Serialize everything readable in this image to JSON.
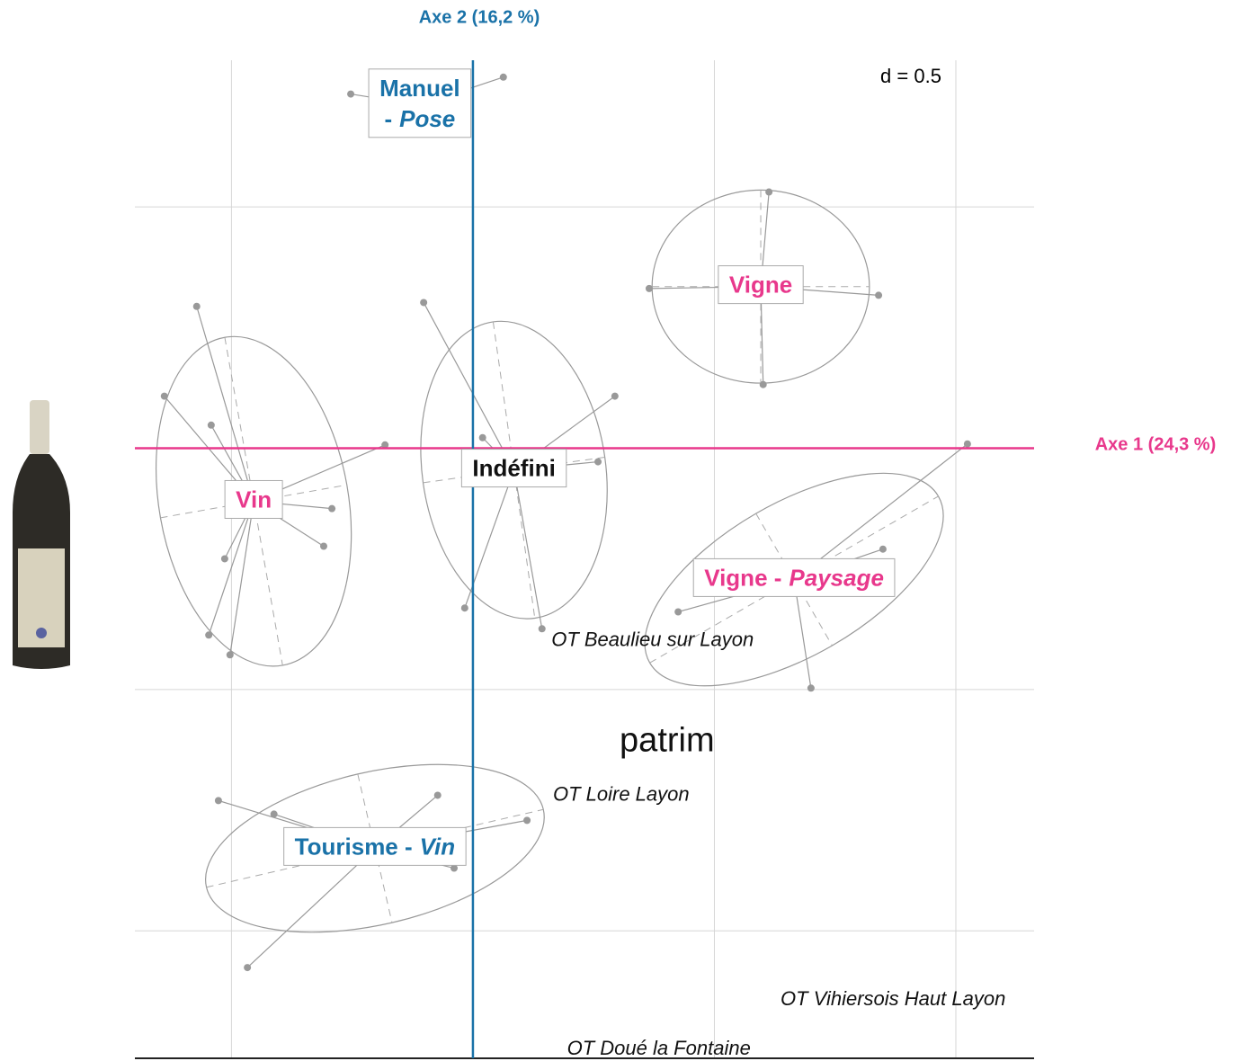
{
  "chart_data": {
    "type": "scatter",
    "x_axis_label": "Axe 1 (24,3 %)",
    "y_axis_label": "Axe 2 (16,2 %)",
    "x_axis_color": "#e8388c",
    "y_axis_color": "#1a72a8",
    "scale_label": "d = 0.5",
    "xlim": [
      -0.7,
      1.162
    ],
    "ylim": [
      -1.264,
      0.804
    ],
    "xticks": [
      -0.5,
      0,
      0.5,
      1
    ],
    "yticks": [
      -1,
      -0.5,
      0,
      0.5
    ],
    "grid": true,
    "classes": [
      {
        "parts": [
          {
            "text": "Manuel"
          },
          {
            "text": "-",
            "newline": true
          },
          {
            "text": "Pose",
            "italic": true
          }
        ],
        "color": "#1a72a8",
        "center": [
          -0.11,
          0.711
        ],
        "points": {
          "x": [
            -0.253,
            0.063
          ],
          "y": [
            0.734,
            0.769
          ]
        }
      },
      {
        "parts": [
          {
            "text": "Vigne"
          }
        ],
        "color": "#e8388c",
        "center": [
          0.596,
          0.335
        ],
        "points": {
          "x": [
            0.613,
            0.365,
            0.84,
            0.601
          ],
          "y": [
            0.531,
            0.331,
            0.317,
            0.132
          ]
        },
        "ellipse": {
          "rx": 0.225,
          "ry": 0.2,
          "angle": 0
        }
      },
      {
        "parts": [
          {
            "text": "Vin"
          }
        ],
        "color": "#e8388c",
        "center": [
          -0.454,
          -0.11
        ],
        "points": {
          "x": [
            -0.572,
            -0.639,
            -0.542,
            -0.182,
            -0.292,
            -0.309,
            -0.514,
            -0.547,
            -0.503
          ],
          "y": [
            0.294,
            0.108,
            0.048,
            0.007,
            -0.125,
            -0.203,
            -0.229,
            -0.387,
            -0.428
          ]
        },
        "ellipse": {
          "rx": 0.196,
          "ry": 0.345,
          "angle": -10
        }
      },
      {
        "parts": [
          {
            "text": "Indéfini"
          }
        ],
        "color": "#111111",
        "center": [
          0.085,
          -0.045
        ],
        "points": {
          "x": [
            -0.102,
            0.294,
            0.02,
            0.259,
            -0.017,
            0.143
          ],
          "y": [
            0.302,
            0.108,
            0.022,
            -0.028,
            -0.331,
            -0.374
          ]
        },
        "ellipse": {
          "rx": 0.19,
          "ry": 0.31,
          "angle": -8
        }
      },
      {
        "parts": [
          {
            "text": "Vigne -"
          },
          {
            "text": "Paysage",
            "italic": true
          }
        ],
        "color": "#e8388c",
        "center": [
          0.665,
          -0.272
        ],
        "points": {
          "x": [
            1.024,
            0.849,
            0.425,
            0.7
          ],
          "y": [
            0.009,
            -0.209,
            -0.339,
            -0.497
          ]
        },
        "ellipse": {
          "rx": 0.345,
          "ry": 0.158,
          "angle": -30
        }
      },
      {
        "parts": [
          {
            "text": "Tourisme -"
          },
          {
            "text": "Vin",
            "italic": true
          }
        ],
        "color": "#1a72a8",
        "center": [
          -0.203,
          -0.829
        ],
        "points": {
          "x": [
            -0.527,
            -0.412,
            -0.073,
            0.112,
            -0.039,
            -0.467
          ],
          "y": [
            -0.73,
            -0.758,
            -0.719,
            -0.771,
            -0.87,
            -1.076
          ]
        },
        "ellipse": {
          "rx": 0.358,
          "ry": 0.158,
          "angle": -13
        }
      }
    ],
    "supplementary": [
      {
        "label": "patrim",
        "x": 0.402,
        "y": -0.609,
        "large": true
      },
      {
        "label": "OT Beaulieu sur Layon",
        "x": 0.372,
        "y": -0.399
      },
      {
        "label": "OT Loire Layon",
        "x": 0.307,
        "y": -0.719
      },
      {
        "label": "OT Vihiersois Haut Layon",
        "x": 0.87,
        "y": -1.143
      },
      {
        "label": "OT Doué la Fontaine",
        "x": 0.385,
        "y": -1.246
      }
    ]
  }
}
